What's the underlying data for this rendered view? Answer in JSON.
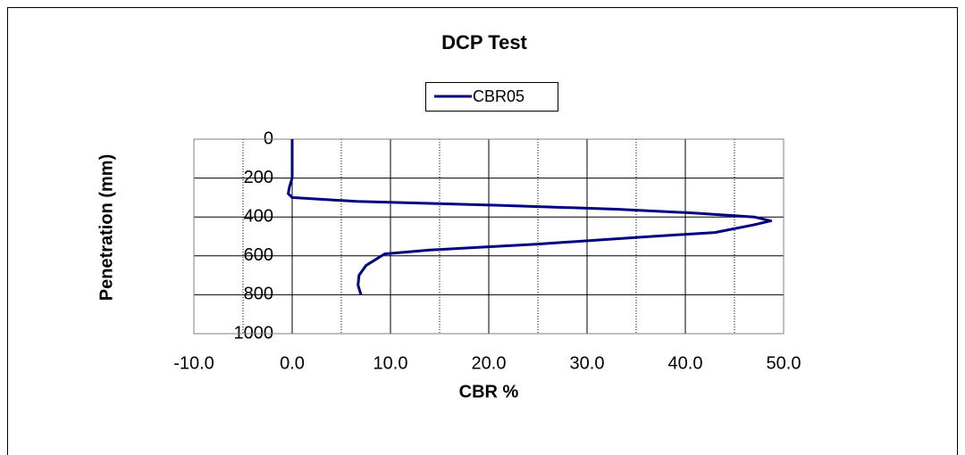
{
  "chart_data": {
    "type": "line",
    "title": "DCP Test",
    "x_label": "CBR %",
    "y_label": "Penetration (mm)",
    "series": [
      {
        "name": "CBR05",
        "color": "#000080",
        "x": [
          0,
          0,
          0,
          -0.3,
          -0.4,
          0,
          6.6,
          21,
          33,
          41,
          47,
          48.7,
          47,
          43,
          36.6,
          24.8,
          14,
          9.4,
          7.5,
          6.8,
          6.7,
          7
        ],
        "values": [
          0,
          100,
          200,
          250,
          280,
          300,
          320,
          340,
          360,
          380,
          400,
          420,
          440,
          480,
          500,
          540,
          570,
          590,
          650,
          700,
          750,
          800
        ]
      }
    ],
    "xlim": [
      -10,
      50
    ],
    "xticks": [
      {
        "value": -10,
        "label": "-10.0"
      },
      {
        "value": 0,
        "label": "0.0"
      },
      {
        "value": 10,
        "label": "10.0"
      },
      {
        "value": 20,
        "label": "20.0"
      },
      {
        "value": 30,
        "label": "30.0"
      },
      {
        "value": 40,
        "label": "40.0"
      },
      {
        "value": 50,
        "label": "50.0"
      }
    ],
    "xminor": [
      -5,
      5,
      15,
      25,
      35,
      45
    ],
    "ylim": [
      0,
      1000
    ],
    "yticks": [
      0,
      200,
      400,
      600,
      800,
      1000
    ],
    "y_inverted": true,
    "grid": true,
    "legend": "top"
  }
}
